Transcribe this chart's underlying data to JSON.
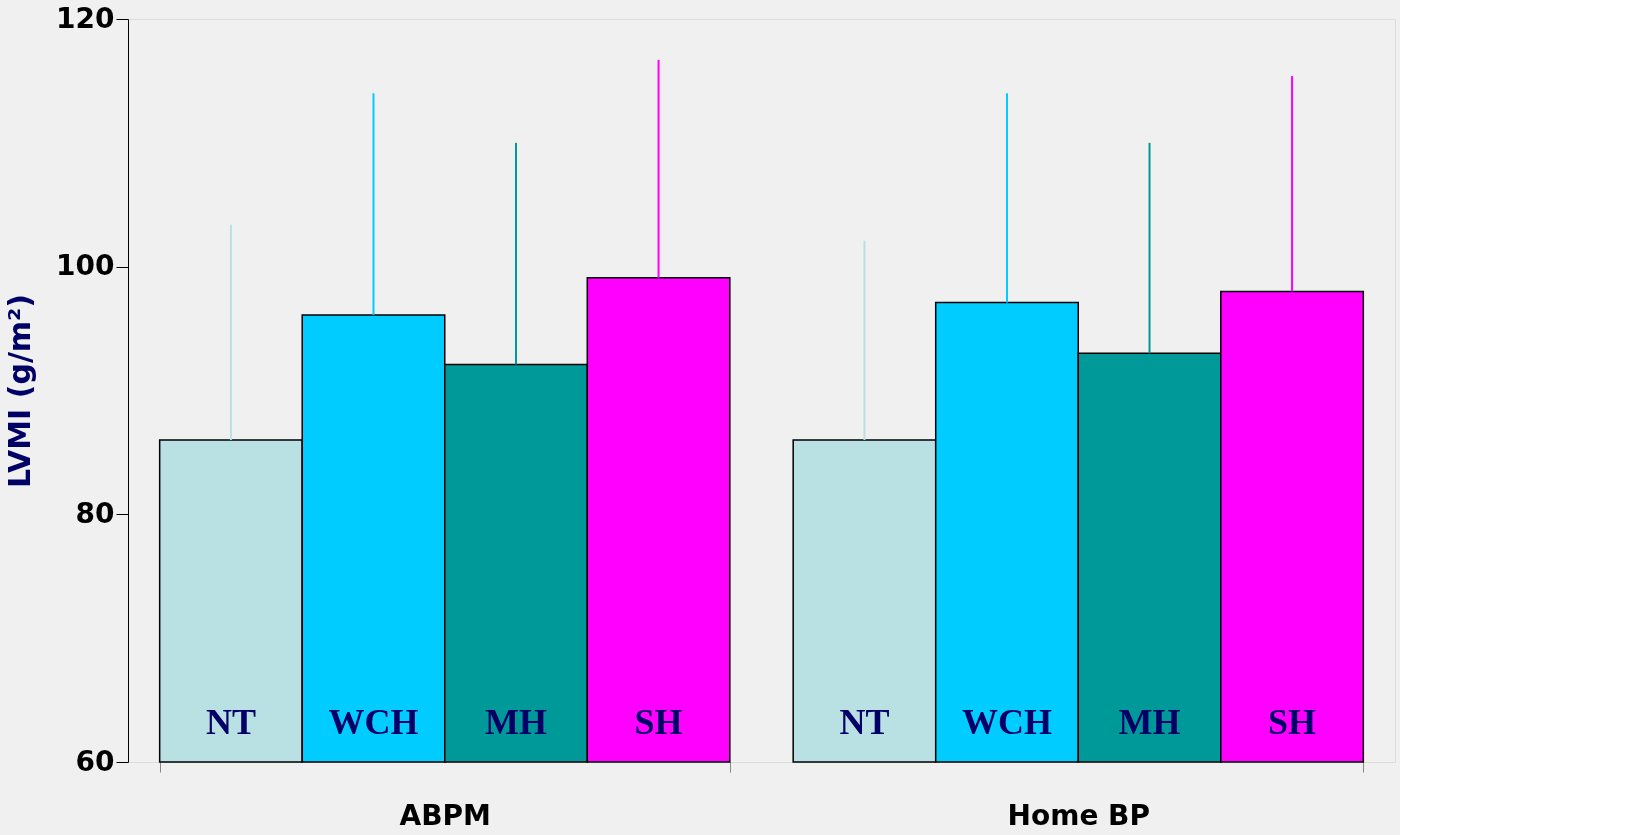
{
  "chart_data": {
    "type": "bar",
    "ylabel": "LVMI (g/m²)",
    "categories": [
      "ABPM",
      "Home BP"
    ],
    "series": [
      {
        "name": "NT",
        "color": "#b9e0e3",
        "values": [
          86.0,
          86.0
        ],
        "errors": [
          [
            86.0,
            103.4
          ],
          [
            86.0,
            102.1
          ]
        ]
      },
      {
        "name": "WCH",
        "color": "#00ccff",
        "values": [
          96.1,
          97.1
        ],
        "errors": [
          [
            96.1,
            114.0
          ],
          [
            97.1,
            114.0
          ]
        ]
      },
      {
        "name": "MH",
        "color": "#009999",
        "values": [
          92.1,
          93.0
        ],
        "errors": [
          [
            92.1,
            110.0
          ],
          [
            93.0,
            110.0
          ]
        ]
      },
      {
        "name": "SH",
        "color": "#ff00ff",
        "values": [
          99.1,
          98.0
        ],
        "errors": [
          [
            99.1,
            116.7
          ],
          [
            98.0,
            115.4
          ]
        ]
      }
    ],
    "ylim": [
      60,
      120
    ],
    "yticks": [
      60,
      80,
      100,
      120
    ],
    "grid": false,
    "legend": false
  }
}
